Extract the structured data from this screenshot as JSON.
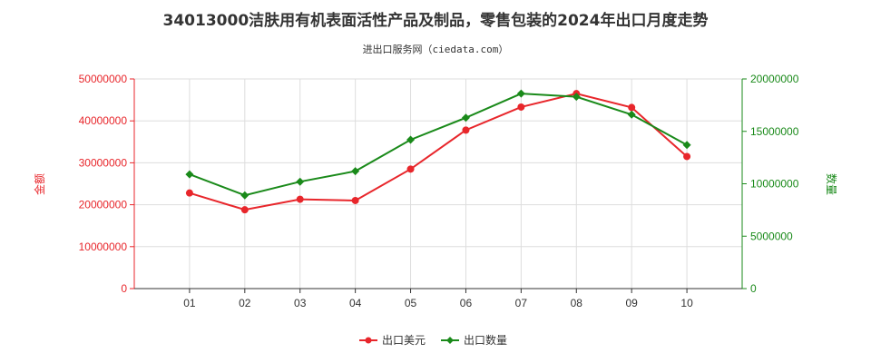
{
  "chart_data": {
    "type": "line",
    "title": "34013000洁肤用有机表面活性产品及制品，零售包装的2024年出口月度走势",
    "subtitle": "进出口服务网（ciedata.com）",
    "categories": [
      "01",
      "02",
      "03",
      "04",
      "05",
      "06",
      "07",
      "08",
      "09",
      "10"
    ],
    "y_left": {
      "label": "金额",
      "ylim": [
        0,
        50000000
      ],
      "ticks": [
        "0",
        "10000000",
        "20000000",
        "30000000",
        "40000000",
        "50000000"
      ],
      "color": "#e8262b"
    },
    "y_right": {
      "label": "数量",
      "ylim": [
        0,
        20000000
      ],
      "ticks": [
        "0",
        "5000000",
        "10000000",
        "15000000",
        "20000000"
      ],
      "color": "#1a8a1a"
    },
    "series": [
      {
        "name": "出口美元",
        "axis": "left",
        "color": "#e8262b",
        "values": [
          22800000,
          18800000,
          21300000,
          21000000,
          28500000,
          37800000,
          43300000,
          46500000,
          43200000,
          31500000
        ]
      },
      {
        "name": "出口数量",
        "axis": "right",
        "color": "#1a8a1a",
        "values": [
          10900000,
          8900000,
          10200000,
          11200000,
          14200000,
          16300000,
          18600000,
          18300000,
          16600000,
          13700000
        ]
      }
    ],
    "grid": true,
    "legend_position": "bottom"
  }
}
